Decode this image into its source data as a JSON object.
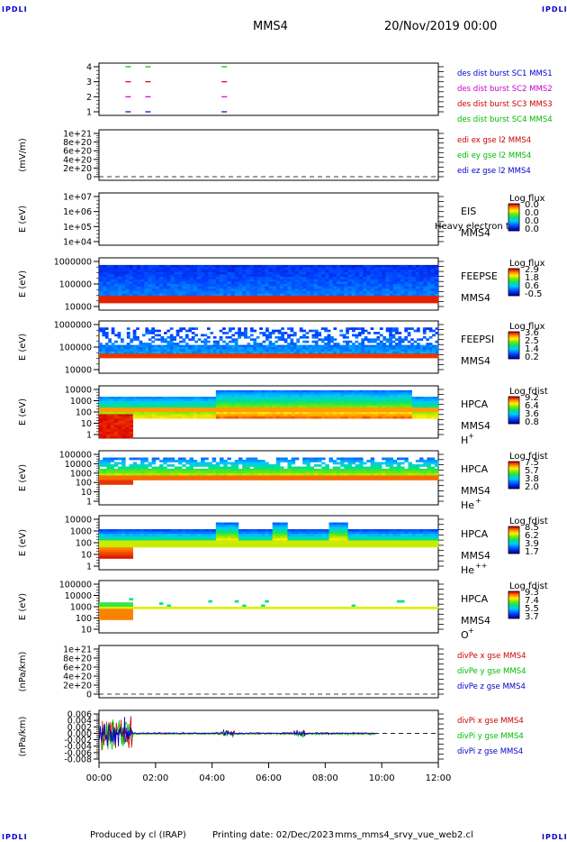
{
  "header": {
    "corner_label": "IPDLI",
    "title": "MMS4",
    "date": "20/Nov/2019 00:00"
  },
  "footer": {
    "produced_by": "Produced by cl (IRAP)",
    "printing_date": "Printing date: 02/Dec/2023",
    "file": "mms_mms4_srvy_vue_web2.cl"
  },
  "colors": {
    "mms1": "#0000cc",
    "mms2": "#cc00cc",
    "mms3": "#cc0000",
    "mms4": "#00bb00",
    "x_comp": "#cc0000",
    "y_comp": "#00bb00",
    "z_comp": "#0000cc"
  },
  "xaxis": {
    "ticks": [
      "00:00",
      "02:00",
      "04:00",
      "06:00",
      "08:00",
      "10:00",
      "12:00"
    ],
    "range_hours": [
      0,
      12
    ]
  },
  "chart_data": [
    {
      "type": "scatter",
      "panel": "burst",
      "yticks": [
        "4",
        "3",
        "2",
        "1"
      ],
      "ylim": [
        0.5,
        4.5
      ],
      "series": [
        {
          "name": "des dist burst SC1 MMS1",
          "y": 1,
          "x_hours": [
            1.0,
            1.7,
            4.4
          ]
        },
        {
          "name": "des dist burst SC2 MMS2",
          "y": 2,
          "x_hours": [
            1.0,
            1.7,
            4.4
          ]
        },
        {
          "name": "des dist burst SC3 MMS3",
          "y": 3,
          "x_hours": [
            1.0,
            1.7,
            4.4
          ]
        },
        {
          "name": "des dist burst SC4 MMS4",
          "y": 4,
          "x_hours": [
            1.0,
            1.7,
            4.4
          ]
        }
      ]
    },
    {
      "type": "line",
      "panel": "edi",
      "ylabel": "(mV/m)",
      "yticks": [
        "1e+21",
        "8e+20",
        "6e+20",
        "4e+20",
        "2e+20",
        "0"
      ],
      "ylim": [
        0,
        1e+21
      ],
      "series": [
        {
          "name": "edi ex gse l2 MMS4"
        },
        {
          "name": "edi ey gse l2 MMS4"
        },
        {
          "name": "edi ez gse l2 MMS4"
        }
      ]
    },
    {
      "type": "heatmap",
      "panel": "eis",
      "ylabel": "E (eV)",
      "yticks": [
        "1e+07",
        "1e+06",
        "1e+05",
        "1e+04"
      ],
      "instrument": [
        "EIS",
        "MMS4"
      ],
      "species": "Heavy electron to",
      "colorbar": {
        "title": "Log flux",
        "values": [
          "0.0",
          "0.0",
          "0.0",
          "0.0"
        ]
      }
    },
    {
      "type": "heatmap",
      "panel": "feepse",
      "ylabel": "E (eV)",
      "yticks": [
        "1000000",
        "100000",
        "10000"
      ],
      "instrument": [
        "FEEPSE",
        "MMS4"
      ],
      "colorbar": {
        "title": "Log flux",
        "values": [
          "2.9",
          "1.8",
          "0.6",
          "-0.5"
        ]
      }
    },
    {
      "type": "heatmap",
      "panel": "feepsi",
      "ylabel": "E (eV)",
      "yticks": [
        "1000000",
        "100000",
        "10000"
      ],
      "instrument": [
        "FEEPSI",
        "MMS4"
      ],
      "colorbar": {
        "title": "Log flux",
        "values": [
          "3.6",
          "2.5",
          "1.4",
          "0.2"
        ]
      }
    },
    {
      "type": "heatmap",
      "panel": "hpca-h",
      "ylabel": "E (eV)",
      "yticks": [
        "10000",
        "1000",
        "100",
        "10",
        "1"
      ],
      "instrument": [
        "HPCA",
        "MMS4"
      ],
      "species": "H",
      "charge": "+",
      "colorbar": {
        "title": "Log fdist",
        "values": [
          "9.2",
          "6.4",
          "3.6",
          "0.8"
        ]
      }
    },
    {
      "type": "heatmap",
      "panel": "hpca-he",
      "ylabel": "E (eV)",
      "yticks": [
        "100000",
        "10000",
        "1000",
        "100",
        "10",
        "1"
      ],
      "instrument": [
        "HPCA",
        "MMS4"
      ],
      "species": "He",
      "charge": "+",
      "colorbar": {
        "title": "Log fdist",
        "values": [
          "7.5",
          "5.7",
          "3.8",
          "2.0"
        ]
      }
    },
    {
      "type": "heatmap",
      "panel": "hpca-he2",
      "ylabel": "E (eV)",
      "yticks": [
        "10000",
        "1000",
        "100",
        "10",
        "1"
      ],
      "instrument": [
        "HPCA",
        "MMS4"
      ],
      "species": "He",
      "charge": "++",
      "colorbar": {
        "title": "Log fdist",
        "values": [
          "8.5",
          "6.2",
          "3.9",
          "1.7"
        ]
      }
    },
    {
      "type": "heatmap",
      "panel": "hpca-o",
      "ylabel": "E (eV)",
      "yticks": [
        "100000",
        "10000",
        "1000",
        "100",
        "10"
      ],
      "instrument": [
        "HPCA",
        "MMS4"
      ],
      "species": "O",
      "charge": "+",
      "colorbar": {
        "title": "Log fdist",
        "values": [
          "9.3",
          "7.4",
          "5.5",
          "3.7"
        ]
      }
    },
    {
      "type": "line",
      "panel": "divpe",
      "ylabel": "(nPa/km)",
      "yticks": [
        "1e+21",
        "8e+20",
        "6e+20",
        "4e+20",
        "2e+20",
        "0"
      ],
      "ylim": [
        0,
        1e+21
      ],
      "series": [
        {
          "name": "divPe x gse MMS4"
        },
        {
          "name": "divPe y gse MMS4"
        },
        {
          "name": "divPe z gse MMS4"
        }
      ]
    },
    {
      "type": "line",
      "panel": "divpi",
      "ylabel": "(nPa/km)",
      "yticks": [
        "0.006",
        "0.004",
        "0.002",
        "0.000",
        "-0.002",
        "-0.004",
        "-0.006",
        "-0.008"
      ],
      "ylim": [
        -0.008,
        0.006
      ],
      "series": [
        {
          "name": "divPi x gse MMS4"
        },
        {
          "name": "divPi y gse MMS4"
        },
        {
          "name": "divPi z gse MMS4"
        }
      ]
    }
  ]
}
